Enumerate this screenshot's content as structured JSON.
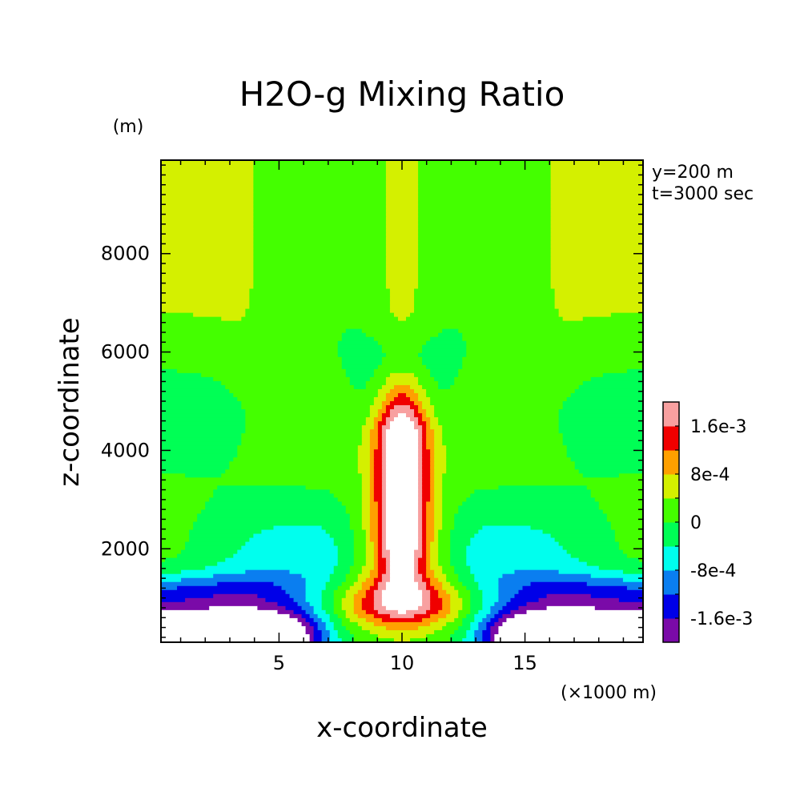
{
  "chart_data": {
    "type": "contour",
    "title": "H2O-g Mixing Ratio",
    "xlabel": "x-coordinate",
    "ylabel": "z-coordinate",
    "x_unit": "(×1000 m)",
    "y_unit": "(m)",
    "info": [
      "y=200 m",
      "t=3000 sec"
    ],
    "xlim": [
      0.2,
      19.8
    ],
    "ylim": [
      100,
      9900
    ],
    "x_ticks": [
      5,
      10,
      15
    ],
    "x_tick_labels": [
      "5",
      "10",
      "15"
    ],
    "y_ticks": [
      2000,
      4000,
      6000,
      8000
    ],
    "y_tick_labels": [
      "2000",
      "4000",
      "6000",
      "8000"
    ],
    "levels": [
      -0.002,
      -0.0016,
      -0.0012,
      -0.0008,
      -0.0004,
      0,
      0.0004,
      0.0008,
      0.0012,
      0.0016,
      0.002
    ],
    "colorbar": {
      "colors": [
        "#7a0aa8",
        "#0000e8",
        "#0a7ef0",
        "#00ffee",
        "#00ff55",
        "#44ff00",
        "#d4f000",
        "#ffa000",
        "#f00000",
        "#f8a0a0"
      ],
      "tick_labels": [
        "-1.6e-3",
        "-8e-4",
        "0",
        "8e-4",
        "1.6e-3"
      ],
      "tick_levels": [
        -0.0016,
        -0.0008,
        0,
        0.0008,
        0.0016
      ]
    },
    "features": [
      {
        "region": "moist core",
        "x": 10,
        "z": 3800,
        "value": ">2e-3"
      },
      {
        "region": "dry lower corners",
        "x": 1.5,
        "z": 300,
        "value": "<-2e-3"
      },
      {
        "region": "upper ambient",
        "x": 10,
        "z": 8000,
        "value": "0 to 4e-4"
      }
    ]
  }
}
